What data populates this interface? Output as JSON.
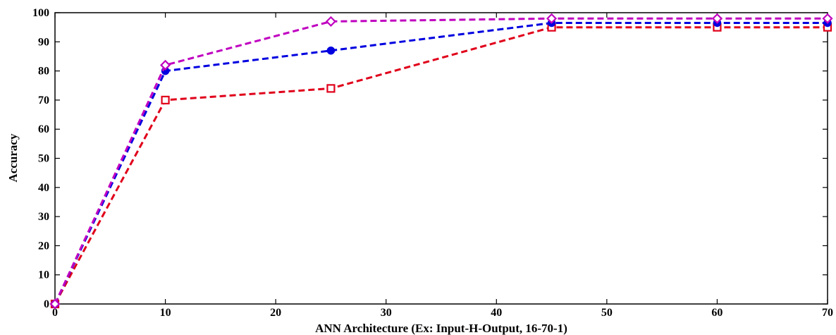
{
  "chart_data": {
    "type": "line",
    "title": "",
    "xlabel": "ANN Architecture (Ex: Input-H-Output, 16-70-1)",
    "ylabel": "Accuracy",
    "xlim": [
      0,
      70
    ],
    "ylim": [
      0,
      100
    ],
    "xticks": [
      "0",
      "10",
      "20",
      "30",
      "40",
      "50",
      "60",
      "70"
    ],
    "yticks": [
      "0",
      "10",
      "20",
      "30",
      "40",
      "50",
      "60",
      "70",
      "80",
      "90",
      "100"
    ],
    "grid": false,
    "series": [
      {
        "color": "#e0001a",
        "marker": "square",
        "x": [
          0,
          10,
          25,
          45,
          60,
          70
        ],
        "y": [
          0,
          70,
          74,
          95,
          95,
          95
        ]
      },
      {
        "color": "#0000e0",
        "marker": "circle",
        "x": [
          0,
          10,
          25,
          45,
          60,
          70
        ],
        "y": [
          0,
          80,
          87,
          96.5,
          96.5,
          96.5
        ]
      },
      {
        "color": "#c000c0",
        "marker": "diamond",
        "x": [
          0,
          10,
          25,
          45,
          60,
          70
        ],
        "y": [
          0,
          82,
          97,
          98,
          98,
          98
        ]
      }
    ]
  }
}
